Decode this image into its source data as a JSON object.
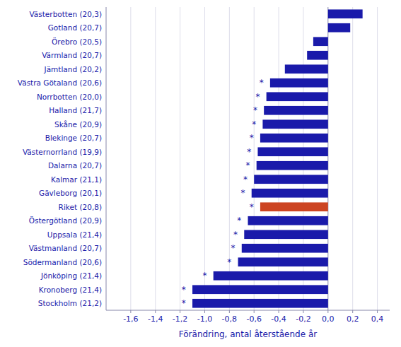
{
  "chart_data": {
    "type": "bar",
    "orientation": "horizontal",
    "xlabel": "Förändring, antal återstående år",
    "categories": [
      "Västerbotten (20,3)",
      "Gotland (20,7)",
      "Örebro (20,5)",
      "Värmland (20,7)",
      "Jämtland (20,2)",
      "Västra Götaland (20,6)",
      "Norrbotten (20,0)",
      "Halland (21,7)",
      "Skåne (20,9)",
      "Blekinge (20,7)",
      "Västernorrland (19,9)",
      "Dalarna (20,7)",
      "Kalmar (21,1)",
      "Gävleborg (20,1)",
      "Riket (20,8)",
      "Östergötland (20,9)",
      "Uppsala (21,4)",
      "Västmanland (20,7)",
      "Södermanland (20,6)",
      "Jönköping (21,4)",
      "Kronoberg (21,4)",
      "Stockholm (21,2)"
    ],
    "values": [
      0.28,
      0.18,
      -0.12,
      -0.17,
      -0.35,
      -0.47,
      -0.5,
      -0.52,
      -0.53,
      -0.55,
      -0.57,
      -0.58,
      -0.6,
      -0.62,
      -0.55,
      -0.65,
      -0.68,
      -0.7,
      -0.73,
      -0.93,
      -1.1,
      -1.1
    ],
    "colors": [
      "#1a1aaa",
      "#1a1aaa",
      "#1a1aaa",
      "#1a1aaa",
      "#1a1aaa",
      "#1a1aaa",
      "#1a1aaa",
      "#1a1aaa",
      "#1a1aaa",
      "#1a1aaa",
      "#1a1aaa",
      "#1a1aaa",
      "#1a1aaa",
      "#1a1aaa",
      "#cc4422",
      "#1a1aaa",
      "#1a1aaa",
      "#1a1aaa",
      "#1a1aaa",
      "#1a1aaa",
      "#1a1aaa",
      "#1a1aaa"
    ],
    "annotations": [
      {
        "text": "*",
        "x": -0.54,
        "category": "Västra Götaland (20,6)"
      },
      {
        "text": "*",
        "x": -0.57,
        "category": "Norrbotten (20,0)"
      },
      {
        "text": "*",
        "x": -0.59,
        "category": "Halland (21,7)"
      },
      {
        "text": "*",
        "x": -0.6,
        "category": "Skåne (20,9)"
      },
      {
        "text": "*",
        "x": -0.62,
        "category": "Blekinge (20,7)"
      },
      {
        "text": "*",
        "x": -0.64,
        "category": "Västernorrland (19,9)"
      },
      {
        "text": "*",
        "x": -0.65,
        "category": "Dalarna (20,7)"
      },
      {
        "text": "*",
        "x": -0.67,
        "category": "Kalmar (21,1)"
      },
      {
        "text": "*",
        "x": -0.69,
        "category": "Gävleborg (20,1)"
      },
      {
        "text": "*",
        "x": -0.62,
        "category": "Riket (20,8)"
      },
      {
        "text": "*",
        "x": -0.72,
        "category": "Östergötland (20,9)"
      },
      {
        "text": "*",
        "x": -0.75,
        "category": "Uppsala (21,4)"
      },
      {
        "text": "*",
        "x": -0.77,
        "category": "Västmanland (20,7)"
      },
      {
        "text": "*",
        "x": -0.8,
        "category": "Södermanland (20,6)"
      },
      {
        "text": "*",
        "x": -1.0,
        "category": "Jönköping (21,4)"
      },
      {
        "text": "*",
        "x": -1.17,
        "category": "Kronoberg (21,4)"
      },
      {
        "text": "*",
        "x": -1.17,
        "category": "Stockholm (21,2)"
      }
    ],
    "xlim": [
      -1.8,
      0.5
    ],
    "xticks": [
      {
        "value": -1.6,
        "label": "-1,6"
      },
      {
        "value": -1.4,
        "label": "-1,4"
      },
      {
        "value": -1.2,
        "label": "-1,2"
      },
      {
        "value": -1.0,
        "label": "-1,0"
      },
      {
        "value": -0.8,
        "label": "-0,8"
      },
      {
        "value": -0.6,
        "label": "-0,6"
      },
      {
        "value": -0.4,
        "label": "-0,4"
      },
      {
        "value": -0.2,
        "label": "-0,2"
      },
      {
        "value": 0.0,
        "label": "0,0"
      },
      {
        "value": 0.2,
        "label": "0,2"
      },
      {
        "value": 0.4,
        "label": "0,4"
      }
    ],
    "grid": true
  }
}
